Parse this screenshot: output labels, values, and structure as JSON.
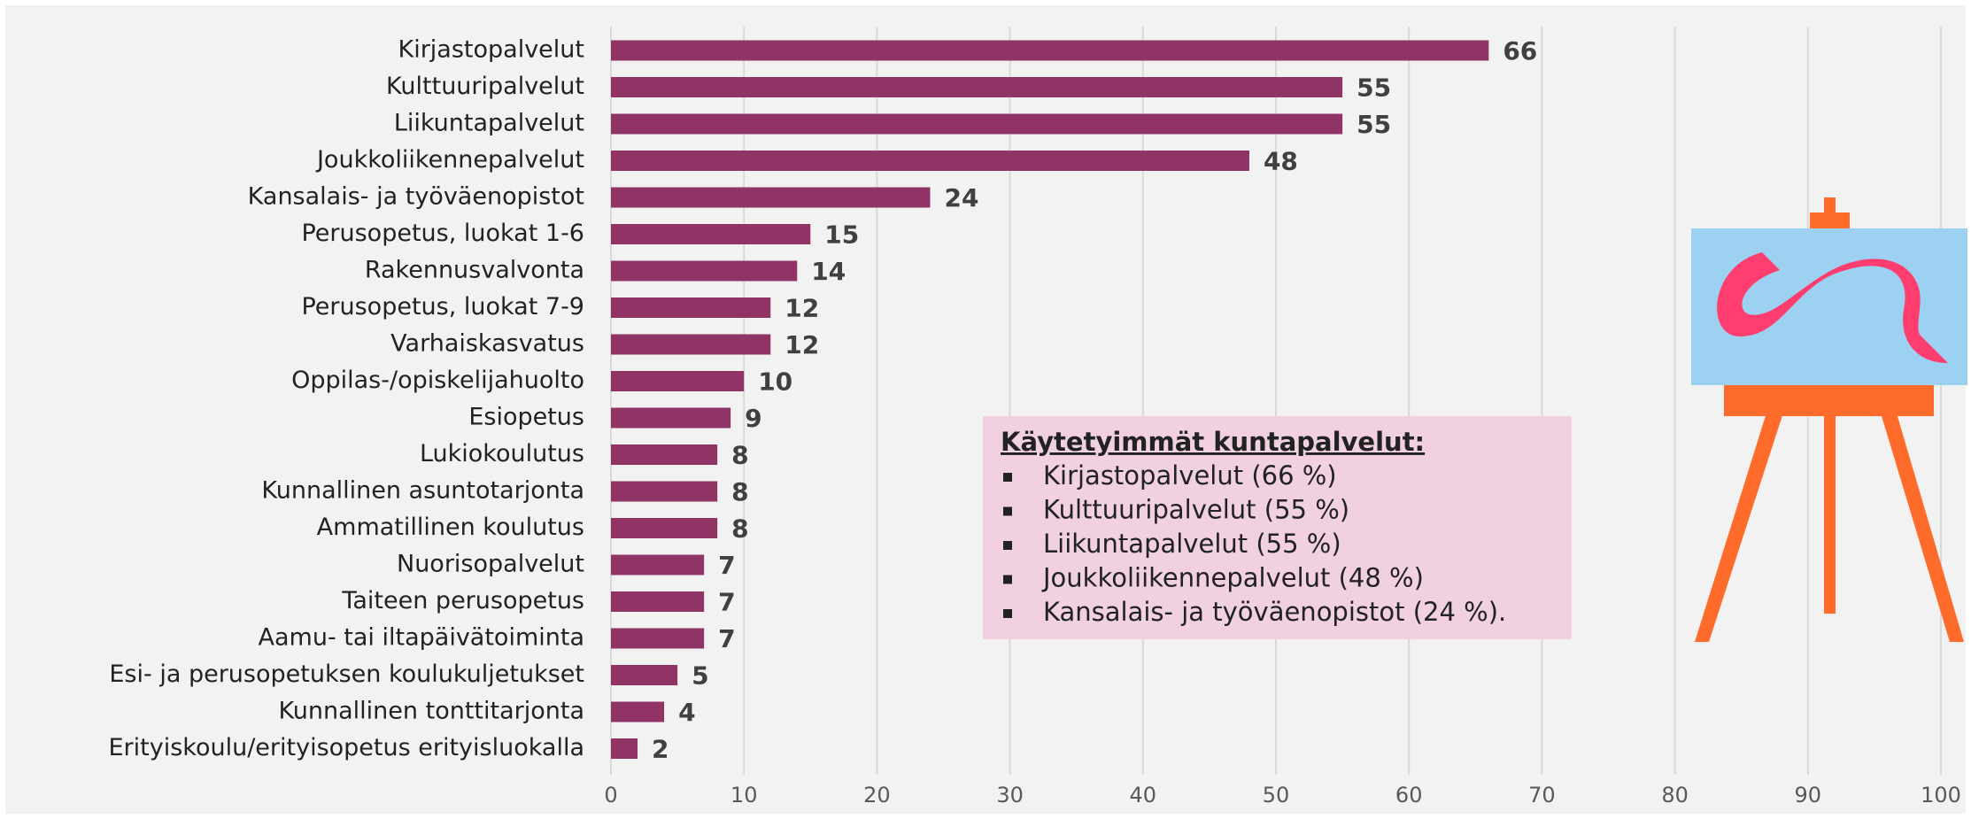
{
  "chart_data": {
    "type": "hbar",
    "categories": [
      "Kirjastopalvelut",
      "Kulttuuripalvelut",
      "Liikuntapalvelut",
      "Joukkoliikennepalvelut",
      "Kansalais- ja työväenopistot",
      "Perusopetus, luokat 1-6",
      "Rakennusvalvonta",
      "Perusopetus, luokat 7-9",
      "Varhaiskasvatus",
      "Oppilas-/opiskelijahuolto",
      "Esiopetus",
      "Lukiokoulutus",
      "Kunnallinen asuntotarjonta",
      "Ammatillinen koulutus",
      "Nuorisopalvelut",
      "Taiteen perusopetus",
      "Aamu- tai iltapäivätoiminta",
      "Esi- ja perusopetuksen koulukuljetukset",
      "Kunnallinen tonttitarjonta",
      "Erityiskoulu/erityisopetus erityisluokalla"
    ],
    "values": [
      66,
      55,
      55,
      48,
      24,
      15,
      14,
      12,
      12,
      10,
      9,
      8,
      8,
      8,
      7,
      7,
      7,
      5,
      4,
      2
    ],
    "color": "#8f3465",
    "xlim": [
      0,
      100
    ],
    "xticks": [
      0,
      10,
      20,
      30,
      40,
      50,
      60,
      70,
      80,
      90,
      100
    ],
    "grid": true,
    "annotation": {
      "title": "Käytetyimmät kuntapalvelut:",
      "items": [
        "Kirjastopalvelut (66 %)",
        "Kulttuuripalvelut (55 %)",
        "Liikuntapalvelut (55 %)",
        "Joukkoliikennepalvelut (48 %)",
        "Kansalais- ja työväenopistot (24 %)."
      ]
    }
  }
}
